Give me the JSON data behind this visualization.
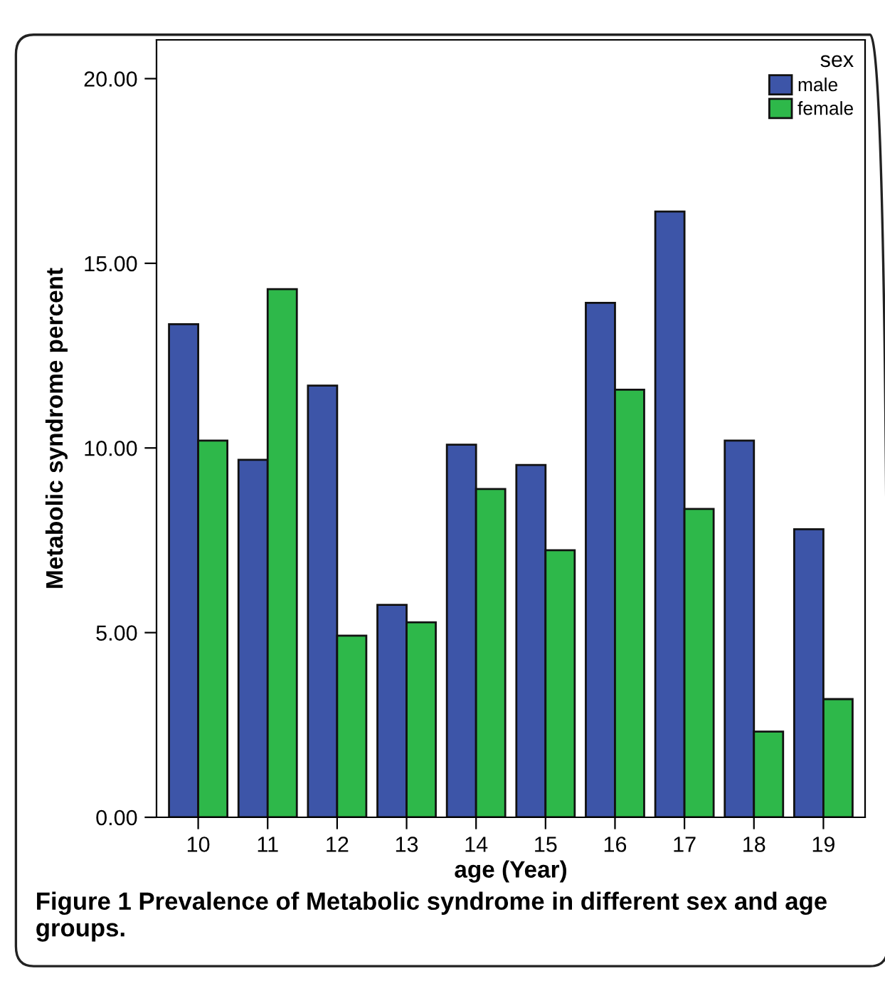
{
  "chart_data": {
    "type": "bar",
    "xlabel": "age (Year)",
    "ylabel": "Metabolic syndrome percent",
    "legend_title": "sex",
    "categories": [
      "10",
      "11",
      "12",
      "13",
      "14",
      "15",
      "16",
      "17",
      "18",
      "19"
    ],
    "series": [
      {
        "name": "male",
        "color": "#3d55a8",
        "values": [
          13.35,
          9.68,
          11.69,
          5.75,
          10.09,
          9.54,
          13.93,
          16.4,
          10.2,
          7.8
        ]
      },
      {
        "name": "female",
        "color": "#2eb84a",
        "values": [
          10.2,
          14.3,
          4.92,
          5.28,
          8.89,
          7.23,
          11.58,
          8.35,
          2.32,
          3.2
        ]
      }
    ],
    "ylim": [
      0,
      21.05
    ],
    "yticks": [
      {
        "value": 0,
        "label": "0.00"
      },
      {
        "value": 5,
        "label": "5.00"
      },
      {
        "value": 10,
        "label": "10.00"
      },
      {
        "value": 15,
        "label": "15.00"
      },
      {
        "value": 20,
        "label": "20.00"
      }
    ],
    "grid": false,
    "legend": "top right",
    "annotations": [
      "Figure 1 Prevalence of Metabolic syndrome in different sex and age groups."
    ]
  }
}
